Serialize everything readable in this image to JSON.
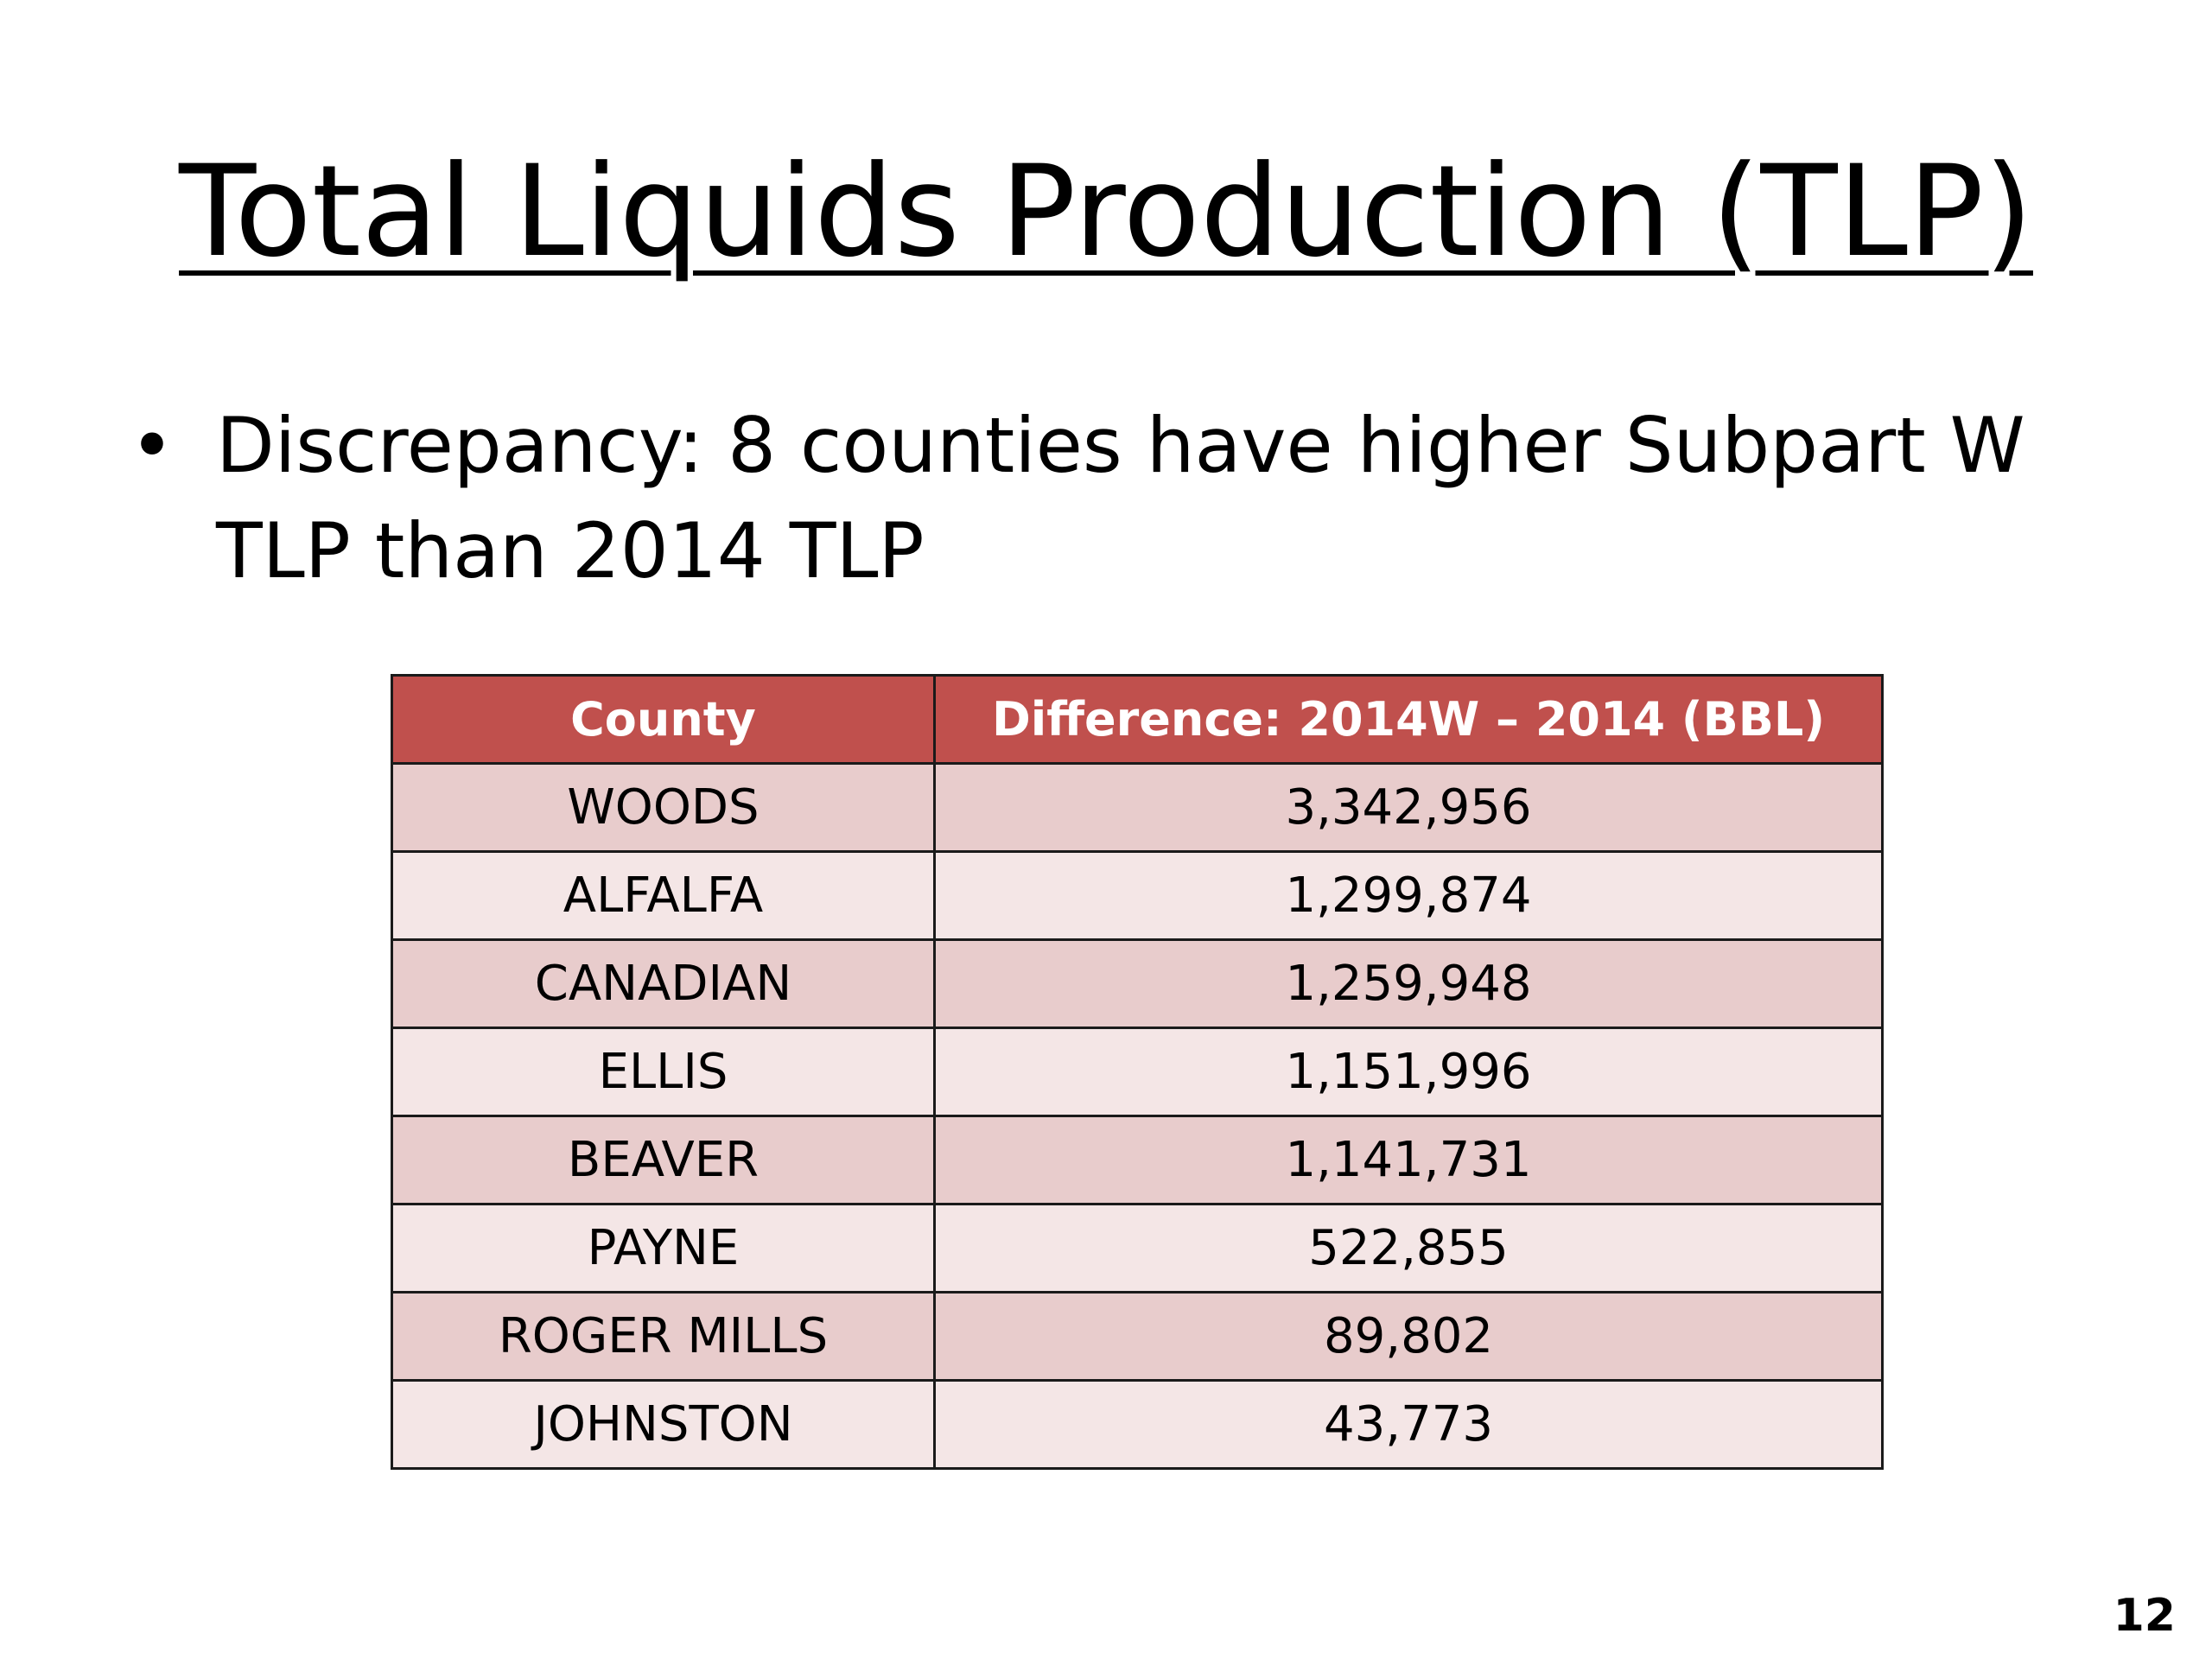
{
  "slide": {
    "title": "Total Liquids Production (TLP)",
    "bullet": "Discrepancy: 8 counties have higher Subpart W TLP than 2014 TLP",
    "bullet_symbol": "•",
    "page_number": "12"
  },
  "table": {
    "headers": [
      "County",
      "Difference: 2014W – 2014 (BBL)"
    ],
    "header_color": "#c0504d",
    "row_colors": [
      "#e8cccc",
      "#f4e6e6"
    ],
    "rows": [
      [
        "WOODS",
        "3,342,956"
      ],
      [
        "ALFALFA",
        "1,299,874"
      ],
      [
        "CANADIAN",
        "1,259,948"
      ],
      [
        "ELLIS",
        "1,151,996"
      ],
      [
        "BEAVER",
        "1,141,731"
      ],
      [
        "PAYNE",
        "522,855"
      ],
      [
        "ROGER MILLS",
        "89,802"
      ],
      [
        "JOHNSTON",
        "43,773"
      ]
    ]
  }
}
